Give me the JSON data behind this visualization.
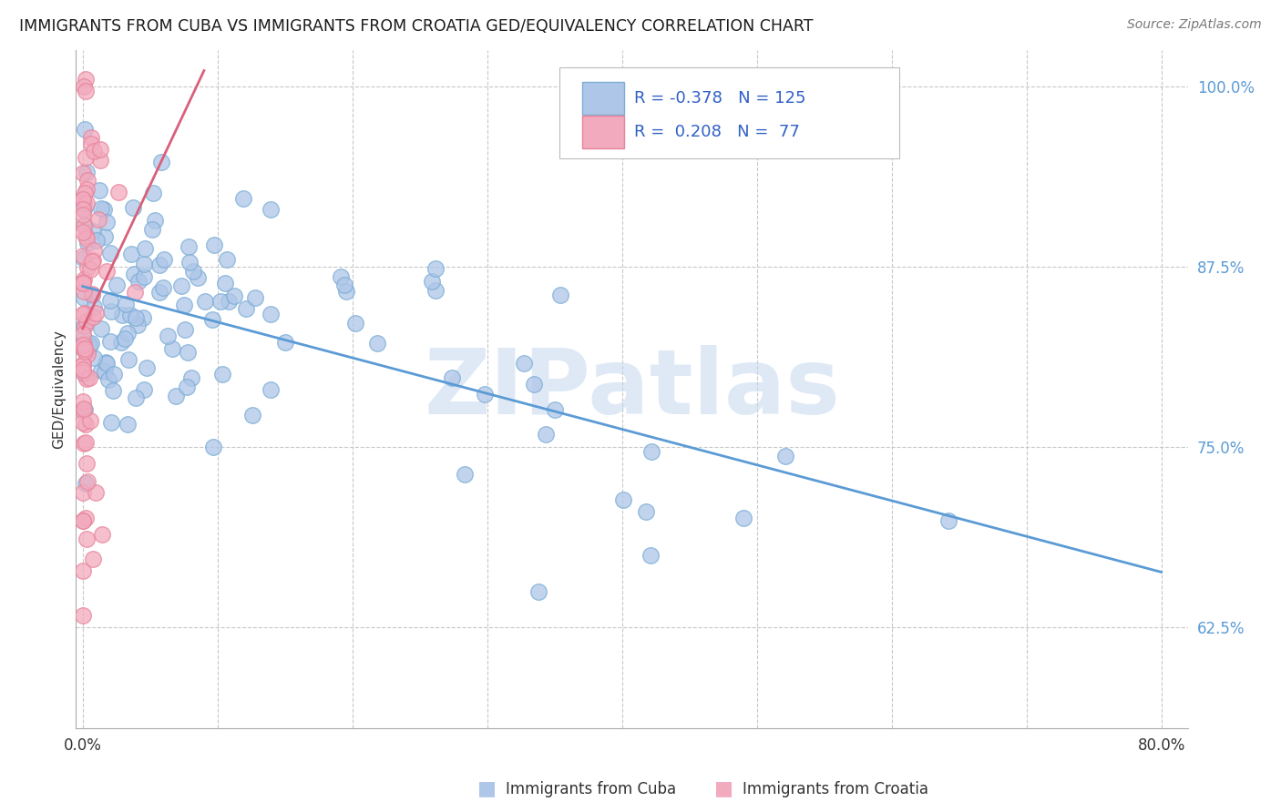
{
  "title": "IMMIGRANTS FROM CUBA VS IMMIGRANTS FROM CROATIA GED/EQUIVALENCY CORRELATION CHART",
  "source": "Source: ZipAtlas.com",
  "ylabel": "GED/Equivalency",
  "ytick_labels": [
    "62.5%",
    "75.0%",
    "87.5%",
    "100.0%"
  ],
  "ytick_values": [
    0.625,
    0.75,
    0.875,
    1.0
  ],
  "xtick_vals": [
    0.0,
    0.1,
    0.2,
    0.3,
    0.4,
    0.5,
    0.6,
    0.7,
    0.8
  ],
  "xtick_labels": [
    "0.0%",
    "",
    "",
    "",
    "",
    "",
    "",
    "",
    "80.0%"
  ],
  "xlim": [
    -0.005,
    0.82
  ],
  "ylim": [
    0.555,
    1.025
  ],
  "legend_r_cuba": "-0.378",
  "legend_n_cuba": "125",
  "legend_r_croatia": "0.208",
  "legend_n_croatia": "77",
  "cuba_fill_color": "#aec6e8",
  "croatia_fill_color": "#f2aabe",
  "cuba_edge_color": "#7badd6",
  "croatia_edge_color": "#e8849a",
  "cuba_line_color": "#5b9bd5",
  "croatia_line_color": "#d9607a",
  "legend_text_color": "#3060c8",
  "legend_n_color": "#3060c8",
  "background_color": "#ffffff",
  "grid_color": "#c8c8c8",
  "ytick_color": "#5b9bd5",
  "xtick_color": "#333333",
  "title_fontsize": 12.5,
  "source_fontsize": 10,
  "tick_fontsize": 12,
  "ylabel_fontsize": 11,
  "watermark_text": "ZIPatlas",
  "watermark_color": "#c5d8f0",
  "legend_label_cuba": "Immigrants from Cuba",
  "legend_label_croatia": "Immigrants from Croatia"
}
